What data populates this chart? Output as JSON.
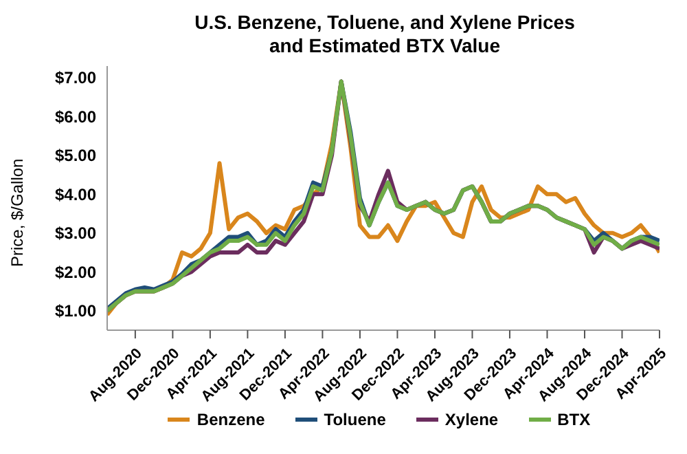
{
  "chart_data": {
    "type": "line",
    "title": "U.S. Benzene, Toluene, and Xylene Prices\nand Estimated BTX Value",
    "ylabel": "Price, $/Gallon",
    "x": [
      "2020-05",
      "2020-06",
      "2020-07",
      "2020-08",
      "2020-09",
      "2020-10",
      "2020-11",
      "2020-12",
      "2021-01",
      "2021-02",
      "2021-03",
      "2021-04",
      "2021-05",
      "2021-06",
      "2021-07",
      "2021-08",
      "2021-09",
      "2021-10",
      "2021-11",
      "2021-12",
      "2022-01",
      "2022-02",
      "2022-03",
      "2022-04",
      "2022-05",
      "2022-06",
      "2022-07",
      "2022-08",
      "2022-09",
      "2022-10",
      "2022-11",
      "2022-12",
      "2023-01",
      "2023-02",
      "2023-03",
      "2023-04",
      "2023-05",
      "2023-06",
      "2023-07",
      "2023-08",
      "2023-09",
      "2023-10",
      "2023-11",
      "2023-12",
      "2024-01",
      "2024-02",
      "2024-03",
      "2024-04",
      "2024-05",
      "2024-06",
      "2024-07",
      "2024-08",
      "2024-09",
      "2024-10",
      "2024-11",
      "2024-12",
      "2025-01",
      "2025-02",
      "2025-03",
      "2025-04"
    ],
    "series": [
      {
        "name": "Benzene",
        "color": "#d9861c",
        "values": [
          0.9,
          1.2,
          1.4,
          1.5,
          1.5,
          1.5,
          1.6,
          1.8,
          2.5,
          2.4,
          2.6,
          3.0,
          4.8,
          3.1,
          3.4,
          3.5,
          3.3,
          3.0,
          3.2,
          3.1,
          3.6,
          3.7,
          4.0,
          4.2,
          5.3,
          6.9,
          5.2,
          3.2,
          2.9,
          2.9,
          3.2,
          2.8,
          3.3,
          3.7,
          3.7,
          3.8,
          3.4,
          3.0,
          2.9,
          3.8,
          4.2,
          3.6,
          3.4,
          3.4,
          3.5,
          3.6,
          4.2,
          4.0,
          4.0,
          3.8,
          3.9,
          3.5,
          3.2,
          3.0,
          3.0,
          2.9,
          3.0,
          3.2,
          2.9,
          2.5
        ]
      },
      {
        "name": "Toluene",
        "color": "#1f4e79",
        "values": [
          1.05,
          1.25,
          1.45,
          1.55,
          1.6,
          1.55,
          1.65,
          1.75,
          1.95,
          2.2,
          2.3,
          2.5,
          2.7,
          2.9,
          2.9,
          3.0,
          2.7,
          2.8,
          3.1,
          2.9,
          3.3,
          3.6,
          4.3,
          4.2,
          5.1,
          6.9,
          5.6,
          3.9,
          3.2,
          3.8,
          4.3,
          3.7,
          3.6,
          3.7,
          3.8,
          3.6,
          3.5,
          3.6,
          4.1,
          4.2,
          3.8,
          3.3,
          3.3,
          3.5,
          3.6,
          3.7,
          3.7,
          3.6,
          3.4,
          3.3,
          3.2,
          3.1,
          2.8,
          3.0,
          2.8,
          2.6,
          2.8,
          2.9,
          2.9,
          2.8
        ]
      },
      {
        "name": "Xylene",
        "color": "#6b2d5e",
        "values": [
          1.0,
          1.2,
          1.4,
          1.5,
          1.5,
          1.5,
          1.6,
          1.7,
          1.9,
          2.0,
          2.2,
          2.4,
          2.5,
          2.5,
          2.5,
          2.7,
          2.5,
          2.5,
          2.8,
          2.7,
          3.0,
          3.3,
          4.0,
          4.0,
          5.0,
          6.9,
          5.4,
          3.7,
          3.3,
          4.0,
          4.6,
          3.8,
          3.6,
          3.7,
          3.8,
          3.6,
          3.5,
          3.6,
          4.1,
          4.2,
          3.8,
          3.3,
          3.3,
          3.5,
          3.6,
          3.7,
          3.7,
          3.6,
          3.4,
          3.3,
          3.2,
          3.1,
          2.5,
          2.9,
          2.8,
          2.6,
          2.7,
          2.8,
          2.7,
          2.6
        ]
      },
      {
        "name": "BTX",
        "color": "#70ad47",
        "values": [
          1.0,
          1.2,
          1.4,
          1.5,
          1.5,
          1.5,
          1.6,
          1.7,
          1.9,
          2.1,
          2.3,
          2.5,
          2.6,
          2.8,
          2.8,
          2.9,
          2.7,
          2.7,
          3.0,
          2.8,
          3.2,
          3.5,
          4.2,
          4.1,
          5.1,
          6.9,
          5.5,
          3.8,
          3.2,
          3.8,
          4.3,
          3.7,
          3.6,
          3.7,
          3.8,
          3.6,
          3.5,
          3.6,
          4.1,
          4.2,
          3.8,
          3.3,
          3.3,
          3.5,
          3.6,
          3.7,
          3.7,
          3.6,
          3.4,
          3.3,
          3.2,
          3.1,
          2.7,
          2.9,
          2.8,
          2.6,
          2.8,
          2.9,
          2.8,
          2.7
        ]
      }
    ],
    "xlim": [
      "2020-05",
      "2025-04"
    ],
    "xticks": [
      {
        "value": "2020-08",
        "label": "Aug-2020"
      },
      {
        "value": "2020-12",
        "label": "Dec-2020"
      },
      {
        "value": "2021-04",
        "label": "Apr-2021"
      },
      {
        "value": "2021-08",
        "label": "Aug-2021"
      },
      {
        "value": "2021-12",
        "label": "Dec-2021"
      },
      {
        "value": "2022-04",
        "label": "Apr-2022"
      },
      {
        "value": "2022-08",
        "label": "Aug-2022"
      },
      {
        "value": "2022-12",
        "label": "Dec-2022"
      },
      {
        "value": "2023-04",
        "label": "Apr-2023"
      },
      {
        "value": "2023-08",
        "label": "Aug-2023"
      },
      {
        "value": "2023-12",
        "label": "Dec-2023"
      },
      {
        "value": "2024-04",
        "label": "Apr-2024"
      },
      {
        "value": "2024-08",
        "label": "Aug-2024"
      },
      {
        "value": "2024-12",
        "label": "Dec-2024"
      },
      {
        "value": "2025-04",
        "label": "Apr-2025"
      }
    ],
    "ylim": [
      0.5,
      7.3
    ],
    "yticks": [
      {
        "value": 1,
        "label": "$1.00"
      },
      {
        "value": 2,
        "label": "$2.00"
      },
      {
        "value": 3,
        "label": "$3.00"
      },
      {
        "value": 4,
        "label": "$4.00"
      },
      {
        "value": 5,
        "label": "$5.00"
      },
      {
        "value": 6,
        "label": "$6.00"
      },
      {
        "value": 7,
        "label": "$7.00"
      }
    ],
    "grid": false,
    "legend": "bottom",
    "marker": "none",
    "line_style": "solid"
  }
}
